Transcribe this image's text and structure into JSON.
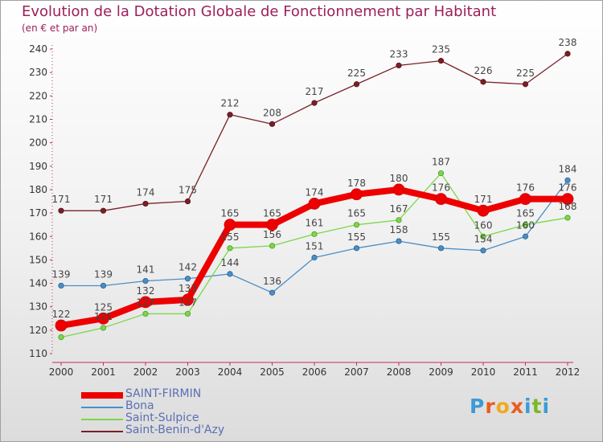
{
  "title": "Evolution de la Dotation Globale de Fonctionnement par Habitant",
  "subtitle": "(en € et par an)",
  "logo": {
    "letters": [
      "P",
      "r",
      "o",
      "x",
      "i",
      "t",
      "i"
    ],
    "colors": [
      "#3a9bd8",
      "#e85d1e",
      "#f2a81d",
      "#e85d1e",
      "#3a9bd8",
      "#78b82a",
      "#3a9bd8"
    ]
  },
  "chart_data": {
    "type": "line",
    "title": "Evolution de la Dotation Globale de Fonctionnement par Habitant",
    "ylabel": "(en € et par an)",
    "x": [
      2000,
      2001,
      2002,
      2003,
      2004,
      2005,
      2006,
      2007,
      2008,
      2009,
      2010,
      2011,
      2012
    ],
    "ylim": [
      110,
      240
    ],
    "yticks": [
      110,
      120,
      130,
      140,
      150,
      160,
      170,
      180,
      190,
      200,
      210,
      220,
      230,
      240
    ],
    "series": [
      {
        "name": "Saint-Benin-d'Azy",
        "color": "#7a1f28",
        "values": [
          171,
          171,
          174,
          175,
          212,
          208,
          217,
          225,
          233,
          235,
          226,
          225,
          238
        ]
      },
      {
        "name": "Bona",
        "color": "#4a8ec8",
        "values": [
          139,
          139,
          141,
          142,
          144,
          136,
          151,
          155,
          158,
          155,
          154,
          160,
          184
        ]
      },
      {
        "name": "Saint-Sulpice",
        "color": "#7dd64a",
        "values": [
          117,
          121,
          127,
          127,
          155,
          156,
          161,
          165,
          167,
          187,
          160,
          165,
          168
        ]
      },
      {
        "name": "SAINT-FIRMIN",
        "color": "#ee0000",
        "values": [
          122,
          125,
          132,
          133,
          165,
          165,
          174,
          178,
          180,
          176,
          171,
          176,
          176
        ]
      }
    ],
    "data_labels": [
      {
        "series": "Saint-Benin-d'Azy",
        "values": [
          171,
          171,
          174,
          175,
          212,
          208,
          217,
          225,
          233,
          235,
          226,
          225,
          238
        ]
      },
      {
        "series": "Bona",
        "values": [
          139,
          139,
          141,
          142,
          144,
          136,
          151,
          155,
          158,
          155,
          154,
          160,
          184
        ]
      },
      {
        "series": "Saint-Sulpice",
        "values": [
          null,
          121,
          127,
          127,
          155,
          156,
          161,
          165,
          167,
          187,
          160,
          165,
          168
        ]
      },
      {
        "series": "SAINT-FIRMIN",
        "values": [
          122,
          125,
          132,
          133,
          165,
          165,
          174,
          178,
          180,
          176,
          171,
          176,
          176
        ]
      }
    ],
    "legend": [
      "SAINT-FIRMIN",
      "Bona",
      "Saint-Sulpice",
      "Saint-Benin-d'Azy"
    ],
    "legend_position": "bottom-left",
    "grid": false
  }
}
